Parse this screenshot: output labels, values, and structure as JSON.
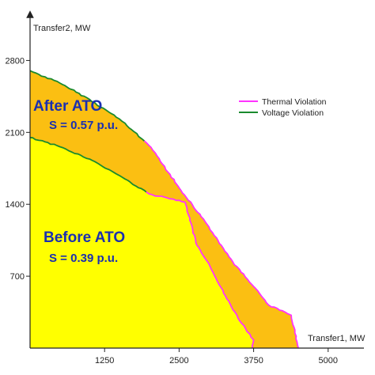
{
  "chart_data": {
    "type": "area",
    "xlabel": "Transfer1, MW",
    "ylabel": "Transfer2, MW",
    "xlim": [
      0,
      5600
    ],
    "ylim": [
      0,
      3250
    ],
    "xticks": [
      1250,
      2500,
      3750,
      5000
    ],
    "yticks": [
      700,
      1400,
      2100,
      2800
    ],
    "legend_position": "right-middle",
    "legend": [
      {
        "label": "Thermal Violation",
        "color": "#ff33ff"
      },
      {
        "label": "Voltage Violation",
        "color": "#1a8a2e"
      }
    ],
    "colors": {
      "after_fill": "#fbbf12",
      "before_fill": "#ffff00",
      "after_text": "#1a2fb0",
      "before_text": "#1a2fb0"
    },
    "series": [
      {
        "name": "After ATO",
        "annotation": "S = 0.57 p.u.",
        "fill": "after_fill",
        "boundary": [
          {
            "x": 0,
            "y": 2700,
            "type": "voltage"
          },
          {
            "x": 500,
            "y": 2580,
            "type": "voltage"
          },
          {
            "x": 1000,
            "y": 2420,
            "type": "voltage"
          },
          {
            "x": 1500,
            "y": 2230,
            "type": "voltage"
          },
          {
            "x": 1950,
            "y": 2000,
            "type": "voltage"
          },
          {
            "x": 2100,
            "y": 1900,
            "type": "thermal"
          },
          {
            "x": 2500,
            "y": 1560,
            "type": "thermal"
          },
          {
            "x": 3000,
            "y": 1180,
            "type": "thermal"
          },
          {
            "x": 3400,
            "y": 840,
            "type": "thermal"
          },
          {
            "x": 3750,
            "y": 600,
            "type": "thermal"
          },
          {
            "x": 4000,
            "y": 420,
            "type": "thermal"
          },
          {
            "x": 4380,
            "y": 320,
            "type": "thermal"
          },
          {
            "x": 4500,
            "y": 0,
            "type": "thermal"
          }
        ]
      },
      {
        "name": "Before ATO",
        "annotation": "S = 0.39 p.u.",
        "fill": "before_fill",
        "boundary": [
          {
            "x": 0,
            "y": 2050,
            "type": "voltage"
          },
          {
            "x": 500,
            "y": 1960,
            "type": "voltage"
          },
          {
            "x": 1000,
            "y": 1840,
            "type": "voltage"
          },
          {
            "x": 1500,
            "y": 1680,
            "type": "voltage"
          },
          {
            "x": 2000,
            "y": 1500,
            "type": "voltage"
          },
          {
            "x": 2600,
            "y": 1420,
            "type": "thermal"
          },
          {
            "x": 2800,
            "y": 1000,
            "type": "thermal"
          },
          {
            "x": 3000,
            "y": 820,
            "type": "thermal"
          },
          {
            "x": 3300,
            "y": 480,
            "type": "thermal"
          },
          {
            "x": 3550,
            "y": 240,
            "type": "thermal"
          },
          {
            "x": 3750,
            "y": 80,
            "type": "thermal"
          },
          {
            "x": 3730,
            "y": 0,
            "type": "thermal"
          }
        ]
      }
    ]
  }
}
